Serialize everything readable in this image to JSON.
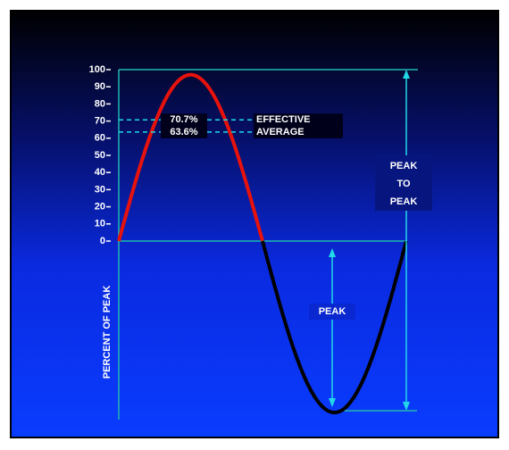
{
  "diagram": {
    "ticks": [
      0,
      10,
      20,
      30,
      40,
      50,
      60,
      70,
      80,
      90,
      100
    ],
    "axis_label": "PERCENT OF PEAK",
    "levels": [
      {
        "value": 70.7,
        "label": "70.7%",
        "name": "EFFECTIVE"
      },
      {
        "value": 63.6,
        "label": "63.6%",
        "name": "AVERAGE"
      }
    ],
    "peak_to_peak": [
      "PEAK",
      "TO",
      "PEAK"
    ],
    "peak": "PEAK"
  }
}
